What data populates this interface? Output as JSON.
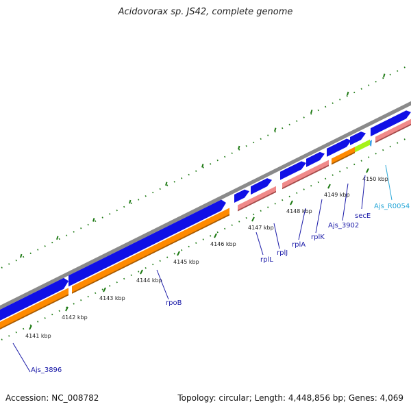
{
  "title": "Acidovorax sp. JS42, complete genome",
  "accession": "Accession: NC_008782",
  "summary": "Topology: circular; Length: 4,448,856 bp; Genes: 4,069",
  "colors": {
    "backbone": "#8a8a8a",
    "cds_strand": "#1010e6",
    "gene": "#ff8a00",
    "rna": "#a6f21a",
    "pink": "#f08a8a",
    "tick": "#1e7a14",
    "tick_label": "#222222"
  },
  "scale_labels": [
    "4141 kbp",
    "4142 kbp",
    "4143 kbp",
    "4144 kbp",
    "4145 kbp",
    "4146 kbp",
    "4147 kbp",
    "4148 kbp",
    "4149 kbp",
    "4150 kbp"
  ],
  "gene_labels": [
    "Ajs_3896",
    "rpoB",
    "rplL",
    "rplJ",
    "rplA",
    "rplK",
    "Ajs_3902",
    "secE",
    "Ajs_R0054"
  ]
}
